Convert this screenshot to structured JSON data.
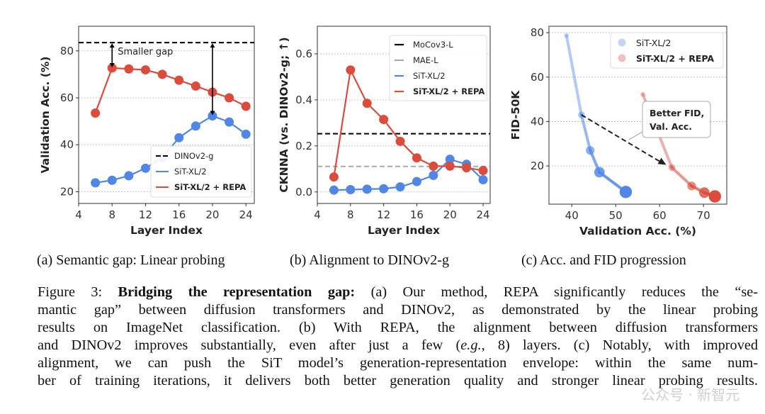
{
  "chart_data": [
    {
      "type": "line",
      "title": "",
      "xlabel": "Layer Index",
      "ylabel": "Validation Acc. (%)",
      "xlim": [
        4,
        25
      ],
      "ylim": [
        15,
        90.5
      ],
      "xticks": [
        4,
        8,
        12,
        16,
        20,
        24
      ],
      "yticks": [
        20,
        40,
        60,
        80
      ],
      "grid": true,
      "legend_position": "bottom-right",
      "x": [
        6,
        8,
        10,
        12,
        14,
        16,
        18,
        20,
        22,
        24
      ],
      "series": [
        {
          "name": "SiT-XL/2",
          "color": "#4f86e8",
          "values": [
            23.8,
            24.9,
            26.8,
            30.0,
            34.5,
            43.0,
            48.0,
            52.3,
            49.7,
            44.5
          ]
        },
        {
          "name": "SiT-XL/2 + REPA",
          "color": "#dd4b3b",
          "values": [
            53.5,
            72.7,
            72.3,
            71.9,
            70.0,
            67.5,
            65.0,
            62.4,
            60.0,
            56.4
          ]
        }
      ],
      "reference_lines": [
        {
          "name": "DINOv2-g",
          "value": 83.5,
          "color": "#000000"
        }
      ],
      "annotations": [
        {
          "text": "Smaller gap"
        }
      ],
      "legend": [
        "DINOv2-g",
        "SiT-XL/2",
        "SiT-XL/2 + REPA"
      ]
    },
    {
      "type": "line",
      "title": "",
      "xlabel": "Layer Index",
      "ylabel": "CKNNA (vs. DINOv2-g; ↑)",
      "xlim": [
        4,
        24.85
      ],
      "ylim": [
        -0.05,
        0.72
      ],
      "xticks": [
        4,
        8,
        12,
        16,
        20,
        24
      ],
      "yticks": [
        "0.0",
        "0.2",
        "0.4",
        "0.6"
      ],
      "grid": true,
      "legend_position": "top-right",
      "x": [
        6,
        8,
        10,
        12,
        14,
        16,
        18,
        20,
        22,
        24
      ],
      "series": [
        {
          "name": "SiT-XL/2",
          "color": "#4f86e8",
          "values": [
            0.008,
            0.01,
            0.012,
            0.014,
            0.022,
            0.045,
            0.072,
            0.142,
            0.12,
            0.053
          ]
        },
        {
          "name": "SiT-XL/2 + REPA",
          "color": "#dd4b3b",
          "values": [
            0.065,
            0.53,
            0.385,
            0.315,
            0.22,
            0.148,
            0.112,
            0.112,
            0.105,
            0.093
          ]
        }
      ],
      "reference_lines": [
        {
          "name": "MoCov3-L",
          "value": 0.253,
          "color": "#000000"
        },
        {
          "name": "MAE-L",
          "value": 0.111,
          "color": "#aaaaaa"
        }
      ],
      "legend": [
        "MoCov3-L",
        "MAE-L",
        "SiT-XL/2",
        "SiT-XL/2 + REPA"
      ]
    },
    {
      "type": "scatter",
      "title": "",
      "xlabel": "Validation Acc. (%)",
      "ylabel": "FID-50K",
      "xlim": [
        34.8,
        75.3
      ],
      "ylim": [
        2.8,
        82.9
      ],
      "xticks": [
        40,
        50,
        60,
        70
      ],
      "yticks": [
        20,
        40,
        60,
        80
      ],
      "grid": true,
      "legend_position": "top-right",
      "series": [
        {
          "name": "SiT-XL/2",
          "color": "#4f86e8",
          "points": [
            [
              38.8,
              78.7
            ],
            [
              42.2,
              43.0
            ],
            [
              44.2,
              27.0
            ],
            [
              46.3,
              17.2
            ],
            [
              52.3,
              8.3
            ]
          ]
        },
        {
          "name": "SiT-XL/2 + REPA",
          "color": "#dd4b3b",
          "points": [
            [
              56.2,
              52.2
            ],
            [
              62.8,
              19.3
            ],
            [
              67.3,
              11.0
            ],
            [
              70.2,
              8.0
            ],
            [
              72.6,
              6.3
            ]
          ]
        }
      ],
      "annotations": [
        {
          "line1": "Better FID,",
          "line2": "Val. Acc.",
          "arrow_from": [
            42.2,
            43.0
          ],
          "arrow_to": [
            61.5,
            20.5
          ]
        }
      ],
      "legend": [
        "SiT-XL/2",
        "SiT-XL/2 + REPA"
      ]
    }
  ],
  "subcaptions": [
    "(a) Semantic gap: Linear probing",
    "(b) Alignment to DINOv2-g",
    "(c) Acc. and FID progression"
  ],
  "caption": {
    "label": "Figure 3:",
    "bold": "Bridging the representation gap:",
    "line1_rest": "(a) Our method, REPA significantly reduces the “se-",
    "line2": "mantic gap” between diffusion transformers and DINOv2, as demonstrated by the linear probing",
    "line3": "results on ImageNet classification. (b) With REPA, the alignment between diffusion transformers",
    "line4a": "and DINOv2 improves substantially, even after just a few (",
    "line4_em": "e.g.",
    "line4b": ", 8) layers. (c) Notably, with improved",
    "line5": "alignment, we can push the SiT model’s generation-representation envelope: within the same num-",
    "line6": "ber of training iterations, it delivers both better generation quality and stronger linear probing results."
  },
  "watermark": "公众号 · 新智元"
}
